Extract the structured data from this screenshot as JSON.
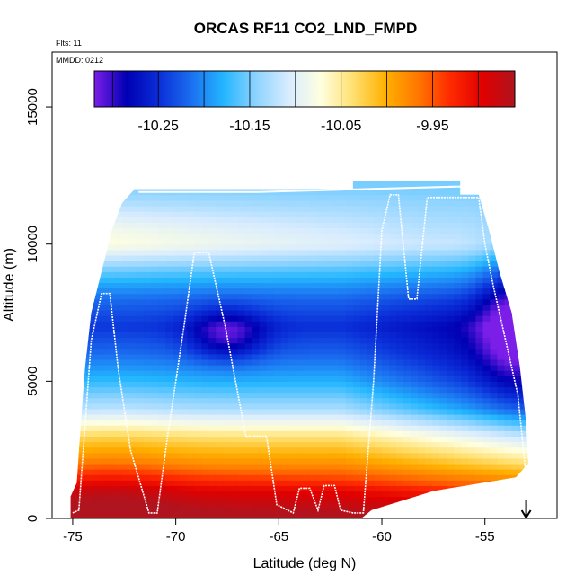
{
  "chart_data": {
    "type": "heatmap",
    "title": "ORCAS RF11 CO2_LND_FMPD",
    "flights_label": "Flts: 11",
    "date_label": "MMDD: 0212",
    "xlabel": "Latitude (deg N)",
    "ylabel": "Altitude (m)",
    "xlim": [
      -76.0,
      -51.5
    ],
    "ylim": [
      0,
      17000
    ],
    "x_ticks": [
      -75,
      -70,
      -65,
      -60,
      -55
    ],
    "x_tick_labels": [
      "-75",
      "-70",
      "-65",
      "-60",
      "-55"
    ],
    "y_ticks": [
      0,
      5000,
      10000,
      15000
    ],
    "y_tick_labels": [
      "0",
      "5000",
      "10000",
      "15000"
    ],
    "colorbar": {
      "min": -10.32,
      "max": -9.86,
      "ticks": [
        -10.25,
        -10.15,
        -10.05,
        -9.95
      ],
      "tick_labels": [
        "-10.25",
        "-10.15",
        "-10.05",
        "-9.95"
      ],
      "colors": [
        "#7b1ee8",
        "#0000b4",
        "#0a2ed8",
        "#1b6ff0",
        "#23b6ff",
        "#8dd3ff",
        "#d8ecff",
        "#ffffe0",
        "#ffe070",
        "#ffb000",
        "#ff7800",
        "#ff2a00",
        "#e00000",
        "#b0141e"
      ]
    },
    "field_profiles": [
      {
        "alt": 0,
        "value": -9.88
      },
      {
        "alt": 1000,
        "value": -9.91
      },
      {
        "alt": 2000,
        "value": -9.98
      },
      {
        "alt": 3000,
        "value": -10.04
      },
      {
        "alt": 4000,
        "value": -10.13
      },
      {
        "alt": 5000,
        "value": -10.18
      },
      {
        "alt": 6000,
        "value": -10.22
      },
      {
        "alt": 7000,
        "value": -10.25
      },
      {
        "alt": 8000,
        "value": -10.22
      },
      {
        "alt": 9000,
        "value": -10.17
      },
      {
        "alt": 10000,
        "value": -10.11
      },
      {
        "alt": 11000,
        "value": -10.13
      },
      {
        "alt": 12000,
        "value": -10.15
      }
    ],
    "domain_outline_lat_alt": [
      [
        -75.1,
        0
      ],
      [
        -75.1,
        800
      ],
      [
        -74.8,
        1300
      ],
      [
        -74.6,
        3500
      ],
      [
        -74.4,
        5500
      ],
      [
        -74.1,
        7500
      ],
      [
        -73.6,
        9000
      ],
      [
        -73.1,
        10500
      ],
      [
        -72.6,
        11500
      ],
      [
        -72.0,
        12000
      ],
      [
        -61.4,
        12000
      ],
      [
        -61.4,
        12300
      ],
      [
        -56.2,
        12300
      ],
      [
        -56.2,
        11800
      ],
      [
        -55.3,
        11800
      ],
      [
        -54.8,
        10500
      ],
      [
        -54.3,
        9000
      ],
      [
        -53.7,
        7500
      ],
      [
        -53.3,
        5500
      ],
      [
        -53.0,
        3500
      ],
      [
        -52.9,
        2000
      ],
      [
        -53.5,
        1500
      ],
      [
        -57.5,
        1000
      ],
      [
        -60.5,
        300
      ],
      [
        -61.0,
        0
      ]
    ],
    "flight_track_lat_alt": [
      [
        -75.0,
        200
      ],
      [
        -74.7,
        300
      ],
      [
        -74.1,
        6500
      ],
      [
        -73.6,
        8200
      ],
      [
        -73.2,
        8200
      ],
      [
        -72.8,
        5500
      ],
      [
        -72.2,
        2500
      ],
      [
        -71.3,
        200
      ],
      [
        -70.9,
        200
      ],
      [
        -70.4,
        3000
      ],
      [
        -69.6,
        7000
      ],
      [
        -69.1,
        9700
      ],
      [
        -68.4,
        9700
      ],
      [
        -67.6,
        7000
      ],
      [
        -66.6,
        3000
      ],
      [
        -65.6,
        3000
      ],
      [
        -65.1,
        500
      ],
      [
        -64.3,
        200
      ],
      [
        -64.0,
        1100
      ],
      [
        -63.5,
        1100
      ],
      [
        -63.1,
        300
      ],
      [
        -62.8,
        1200
      ],
      [
        -62.3,
        1200
      ],
      [
        -62.0,
        300
      ],
      [
        -61.4,
        200
      ],
      [
        -60.9,
        200
      ],
      [
        -60.4,
        5000
      ],
      [
        -60.0,
        10500
      ],
      [
        -59.6,
        11800
      ],
      [
        -59.2,
        11800
      ],
      [
        -58.7,
        8000
      ],
      [
        -58.3,
        8000
      ],
      [
        -57.8,
        11700
      ],
      [
        -56.0,
        11700
      ],
      [
        -55.3,
        11700
      ],
      [
        -55.0,
        10000
      ],
      [
        -54.6,
        8500
      ],
      [
        -54.0,
        6500
      ],
      [
        -53.4,
        4500
      ],
      [
        -53.0,
        1500
      ]
    ],
    "flight_top_track_lat_alt": [
      [
        -71.8,
        11900
      ],
      [
        -66.0,
        11900
      ],
      [
        -61.0,
        12000
      ],
      [
        -56.2,
        12100
      ],
      [
        -55.8,
        11900
      ]
    ],
    "end_marker_lat": -53.0
  }
}
